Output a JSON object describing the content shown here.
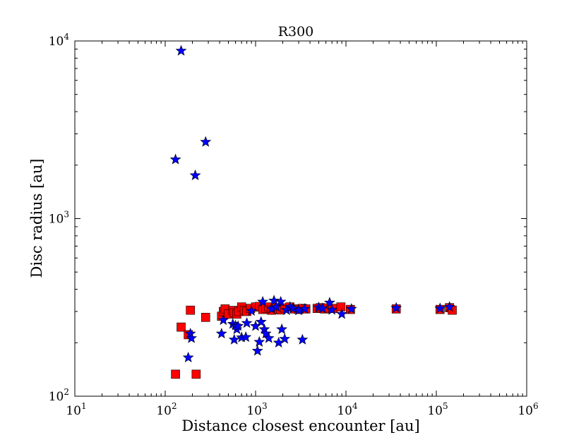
{
  "chart_data": {
    "type": "scatter",
    "title": "R300",
    "xlabel": "Distance closest encounter [au]",
    "ylabel": "Disc radius [au]",
    "xscale": "log",
    "yscale": "log",
    "xlim": [
      10,
      1000000
    ],
    "ylim": [
      100,
      10000
    ],
    "x_tick_labels": [
      {
        "base": "10",
        "exp": "1"
      },
      {
        "base": "10",
        "exp": "2"
      },
      {
        "base": "10",
        "exp": "3"
      },
      {
        "base": "10",
        "exp": "4"
      },
      {
        "base": "10",
        "exp": "5"
      },
      {
        "base": "10",
        "exp": "6"
      }
    ],
    "y_tick_labels": [
      {
        "base": "10",
        "exp": "2"
      },
      {
        "base": "10",
        "exp": "3"
      },
      {
        "base": "10",
        "exp": "4"
      }
    ],
    "grid": false,
    "series": [
      {
        "name": "squares",
        "marker": "square",
        "color": "#ff0000",
        "points": [
          [
            130,
            133
          ],
          [
            150,
            245
          ],
          [
            180,
            222
          ],
          [
            190,
            305
          ],
          [
            220,
            133
          ],
          [
            280,
            278
          ],
          [
            420,
            282
          ],
          [
            440,
            300
          ],
          [
            460,
            310
          ],
          [
            500,
            290
          ],
          [
            560,
            304
          ],
          [
            580,
            295
          ],
          [
            620,
            290
          ],
          [
            650,
            300
          ],
          [
            700,
            318
          ],
          [
            750,
            305
          ],
          [
            800,
            300
          ],
          [
            880,
            312
          ],
          [
            1000,
            318
          ],
          [
            1100,
            320
          ],
          [
            1200,
            308
          ],
          [
            1300,
            312
          ],
          [
            1400,
            318
          ],
          [
            1500,
            305
          ],
          [
            1700,
            315
          ],
          [
            1800,
            310
          ],
          [
            1900,
            306
          ],
          [
            2100,
            314
          ],
          [
            2400,
            318
          ],
          [
            2700,
            310
          ],
          [
            3000,
            308
          ],
          [
            3300,
            312
          ],
          [
            3600,
            310
          ],
          [
            4800,
            312
          ],
          [
            5200,
            315
          ],
          [
            5800,
            310
          ],
          [
            6300,
            314
          ],
          [
            7200,
            312
          ],
          [
            8800,
            318
          ],
          [
            11200,
            308
          ],
          [
            36000,
            310
          ],
          [
            110000,
            308
          ],
          [
            140000,
            315
          ],
          [
            150000,
            305
          ]
        ]
      },
      {
        "name": "stars",
        "marker": "star",
        "color": "#0000ff",
        "points": [
          [
            150,
            8800
          ],
          [
            130,
            2150
          ],
          [
            280,
            2700
          ],
          [
            215,
            1750
          ],
          [
            180,
            165
          ],
          [
            190,
            225
          ],
          [
            195,
            212
          ],
          [
            420,
            225
          ],
          [
            440,
            268
          ],
          [
            560,
            255
          ],
          [
            580,
            208
          ],
          [
            600,
            250
          ],
          [
            620,
            238
          ],
          [
            640,
            248
          ],
          [
            700,
            214
          ],
          [
            780,
            215
          ],
          [
            800,
            258
          ],
          [
            900,
            302
          ],
          [
            1000,
            248
          ],
          [
            1050,
            180
          ],
          [
            1100,
            202
          ],
          [
            1150,
            262
          ],
          [
            1200,
            340
          ],
          [
            1250,
            238
          ],
          [
            1300,
            225
          ],
          [
            1400,
            212
          ],
          [
            1500,
            310
          ],
          [
            1600,
            345
          ],
          [
            1700,
            318
          ],
          [
            1800,
            200
          ],
          [
            1900,
            340
          ],
          [
            1950,
            238
          ],
          [
            2100,
            210
          ],
          [
            2200,
            305
          ],
          [
            2400,
            318
          ],
          [
            2600,
            312
          ],
          [
            3000,
            304
          ],
          [
            3300,
            208
          ],
          [
            3500,
            310
          ],
          [
            5000,
            316
          ],
          [
            5500,
            312
          ],
          [
            6600,
            336
          ],
          [
            7000,
            306
          ],
          [
            9000,
            290
          ],
          [
            11500,
            310
          ],
          [
            36000,
            314
          ],
          [
            110000,
            312
          ],
          [
            140000,
            318
          ]
        ]
      }
    ]
  }
}
